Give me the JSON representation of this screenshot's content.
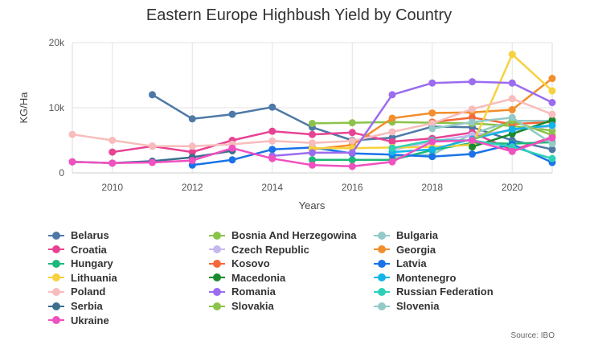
{
  "source": "Source: IBO",
  "chart_data": {
    "type": "line",
    "title": "Eastern Europe Highbush Yield by Country",
    "xlabel": "Years",
    "ylabel": "KG/Ha",
    "xlim": [
      2009,
      2021
    ],
    "ylim": [
      0,
      20000
    ],
    "x_ticks": [
      2010,
      2012,
      2014,
      2016,
      2018,
      2020
    ],
    "x_tick_labels": [
      "2010",
      "2012",
      "2014",
      "2016",
      "2018",
      "2020"
    ],
    "y_ticks": [
      0,
      10000,
      20000
    ],
    "y_tick_labels": [
      "0",
      "10k",
      "20k"
    ],
    "grid": true,
    "legend_position": "bottom",
    "series": [
      {
        "name": "Belarus",
        "color": "#4e79a7",
        "x": [
          2011,
          2012,
          2013,
          2014,
          2015,
          2016,
          2017,
          2018,
          2019,
          2020,
          2021
        ],
        "values": [
          12000,
          8300,
          9000,
          10100,
          7000,
          5000,
          5400,
          7100,
          7000,
          5000,
          3600
        ]
      },
      {
        "name": "Bosnia And Herzegowina",
        "color": "#8bc34a",
        "x": [
          2015,
          2016,
          2017,
          2018,
          2019,
          2020,
          2021
        ],
        "values": [
          7600,
          7700,
          7800,
          7700,
          7600,
          7200,
          6500
        ]
      },
      {
        "name": "Bulgaria",
        "color": "#93c9c7",
        "x": [
          2017,
          2018,
          2019,
          2020,
          2021
        ],
        "values": [
          2500,
          2800,
          6000,
          8000,
          8000
        ]
      },
      {
        "name": "Croatia",
        "color": "#e84393",
        "x": [
          2010,
          2011,
          2012,
          2013,
          2014,
          2015,
          2016,
          2017,
          2018,
          2019,
          2020,
          2021
        ],
        "values": [
          3200,
          4100,
          3200,
          5000,
          6400,
          5900,
          6200,
          4800,
          5300,
          6200,
          3500,
          5500
        ]
      },
      {
        "name": "Czech Republic",
        "color": "#c5b8f0",
        "x": [
          2017,
          2018,
          2019,
          2020,
          2021
        ],
        "values": [
          3500,
          4800,
          5800,
          6500,
          7200
        ]
      },
      {
        "name": "Georgia",
        "color": "#f28e2b",
        "x": [
          2015,
          2016,
          2017,
          2018,
          2019,
          2020,
          2021
        ],
        "values": [
          3600,
          4300,
          8400,
          9200,
          9300,
          9700,
          14500
        ]
      },
      {
        "name": "Hungary",
        "color": "#1db97a",
        "x": [
          2015,
          2016,
          2017,
          2018,
          2019,
          2020,
          2021
        ],
        "values": [
          2000,
          2000,
          2000,
          3500,
          4600,
          4500,
          4700
        ]
      },
      {
        "name": "Kosovo",
        "color": "#f4683a",
        "x": [
          2018,
          2019,
          2020,
          2021
        ],
        "values": [
          7800,
          8500,
          7500,
          7800
        ]
      },
      {
        "name": "Latvia",
        "color": "#1a73e8",
        "x": [
          2012,
          2013,
          2014,
          2015,
          2016,
          2017,
          2018,
          2019,
          2020,
          2021
        ],
        "values": [
          1200,
          2000,
          3600,
          3900,
          3000,
          2800,
          2500,
          2900,
          4400,
          1600
        ]
      },
      {
        "name": "Lithuania",
        "color": "#f7d23e",
        "x": [
          2015,
          2016,
          2017,
          2018,
          2019,
          2020,
          2021
        ],
        "values": [
          3800,
          3800,
          3900,
          4000,
          4300,
          18200,
          12600
        ]
      },
      {
        "name": "Macedonia",
        "color": "#1b8a2e",
        "x": [
          2019,
          2020,
          2021
        ],
        "values": [
          4000,
          6000,
          8100
        ]
      },
      {
        "name": "Montenegro",
        "color": "#12b5e8",
        "x": [
          2017,
          2018,
          2019,
          2020,
          2021
        ],
        "values": [
          3200,
          3600,
          5200,
          6700,
          7300
        ]
      },
      {
        "name": "Poland",
        "color": "#f8bcbc",
        "x": [
          2009,
          2010,
          2011,
          2012,
          2013,
          2014,
          2015,
          2016,
          2017,
          2018,
          2019,
          2020,
          2021
        ],
        "values": [
          5900,
          5000,
          4100,
          4100,
          4400,
          4900,
          4600,
          4900,
          6300,
          7600,
          9800,
          11400,
          9000
        ]
      },
      {
        "name": "Romania",
        "color": "#9b6cf0",
        "x": [
          2014,
          2015,
          2016,
          2017,
          2018,
          2019,
          2020,
          2021
        ],
        "values": [
          2600,
          3100,
          3100,
          12000,
          13800,
          14000,
          13800,
          10800
        ]
      },
      {
        "name": "Russian Federation",
        "color": "#2ed0b8",
        "x": [
          2017,
          2018,
          2019,
          2020,
          2021
        ],
        "values": [
          3800,
          5000,
          5000,
          4000,
          2200
        ]
      },
      {
        "name": "Serbia",
        "color": "#3c6e8f",
        "x": [
          2009,
          2010,
          2011,
          2012,
          2013
        ],
        "values": [
          1700,
          1500,
          1800,
          2400,
          3400
        ]
      },
      {
        "name": "Slovakia",
        "color": "#8bc34a",
        "x": [
          2019,
          2020,
          2021
        ],
        "values": [
          5000,
          8000,
          5800
        ]
      },
      {
        "name": "Slovenia",
        "color": "#93c9c7",
        "x": [
          2018,
          2019,
          2020,
          2021
        ],
        "values": [
          6800,
          7800,
          8500,
          4500
        ]
      },
      {
        "name": "Ukraine",
        "color": "#f050c0",
        "x": [
          2009,
          2010,
          2011,
          2012,
          2013,
          2014,
          2015,
          2016,
          2017,
          2018,
          2019,
          2020,
          2021
        ],
        "values": [
          1700,
          1500,
          1600,
          1900,
          3800,
          2200,
          1200,
          1000,
          1700,
          4800,
          5000,
          3300,
          5400
        ]
      }
    ]
  }
}
